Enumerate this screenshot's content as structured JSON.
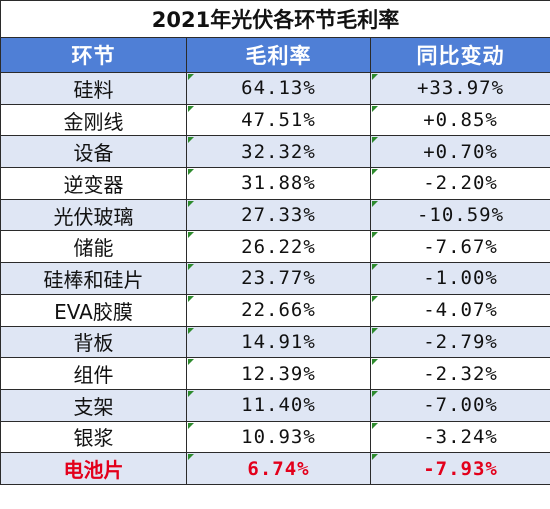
{
  "title": "2021年光伏各环节毛利率",
  "headers": [
    "环节",
    "毛利率",
    "同比变动"
  ],
  "rows": [
    {
      "segment": "硅料",
      "margin": "64.13%",
      "change": "+33.97%"
    },
    {
      "segment": "金刚线",
      "margin": "47.51%",
      "change": "+0.85%"
    },
    {
      "segment": "设备",
      "margin": "32.32%",
      "change": "+0.70%"
    },
    {
      "segment": "逆变器",
      "margin": "31.88%",
      "change": "-2.20%"
    },
    {
      "segment": "光伏玻璃",
      "margin": "27.33%",
      "change": "-10.59%"
    },
    {
      "segment": "储能",
      "margin": "26.22%",
      "change": "-7.67%"
    },
    {
      "segment": "硅棒和硅片",
      "margin": "23.77%",
      "change": "-1.00%"
    },
    {
      "segment": "EVA胶膜",
      "margin": "22.66%",
      "change": "-4.07%"
    },
    {
      "segment": "背板",
      "margin": "14.91%",
      "change": "-2.79%"
    },
    {
      "segment": "组件",
      "margin": "12.39%",
      "change": "-2.32%"
    },
    {
      "segment": "支架",
      "margin": "11.40%",
      "change": "-7.00%"
    },
    {
      "segment": "银浆",
      "margin": "10.93%",
      "change": "-3.24%"
    },
    {
      "segment": "电池片",
      "margin": "6.74%",
      "change": "-7.93%",
      "highlight": true
    }
  ],
  "colors": {
    "header_bg": "#4f7fd6",
    "stripe_bg": "#dfe6f4",
    "highlight_text": "#e3001b",
    "cell_flag": "#2e8b2e"
  }
}
